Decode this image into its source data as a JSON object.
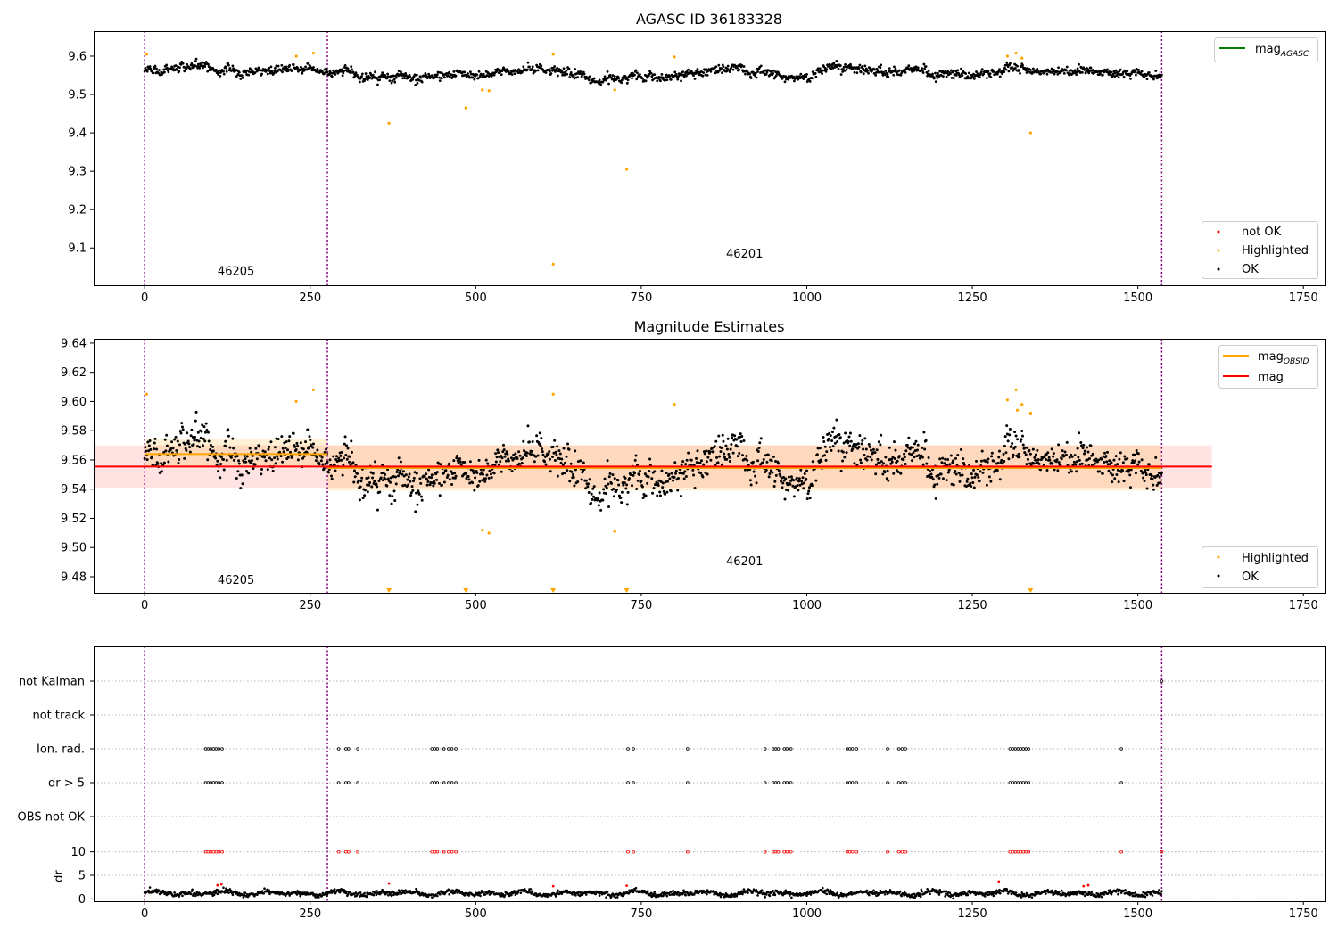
{
  "chart_data": [
    {
      "type": "scatter",
      "title": "AGASC ID 36183328",
      "xlabel": "",
      "ylabel": "",
      "xlim": [
        -77,
        1782
      ],
      "ylim": [
        9.003,
        9.665
      ],
      "xticks": [
        0,
        250,
        500,
        750,
        1000,
        1250,
        1500,
        1750
      ],
      "yticks": [
        9.1,
        9.2,
        9.3,
        9.4,
        9.5,
        9.6
      ],
      "vlines": [
        0,
        276,
        1536
      ],
      "obsid_labels": [
        {
          "text": "46205",
          "x": 138,
          "y": 9.03
        },
        {
          "text": "46201",
          "x": 906,
          "y": 9.075
        }
      ],
      "legend_upper": {
        "entries": [
          {
            "label": "mag",
            "sub": "AGASC",
            "color": "#008000"
          }
        ],
        "placement": "upper right"
      },
      "legend_lower": {
        "entries": [
          {
            "label": "not OK",
            "color": "#ff0000"
          },
          {
            "label": "Highlighted",
            "color": "#ffa500"
          },
          {
            "label": "OK",
            "color": "#000000"
          }
        ],
        "placement": "lower right"
      },
      "series": [
        {
          "name": "OK",
          "color": "#000000",
          "x_start": 0,
          "x_end": 1536,
          "mean": 9.556,
          "spread": 0.012
        },
        {
          "name": "Highlighted",
          "color": "#ffa500",
          "points": [
            [
              3,
              9.605
            ],
            [
              229,
              9.6
            ],
            [
              255,
              9.608
            ],
            [
              369,
              9.425
            ],
            [
              485,
              9.465
            ],
            [
              510,
              9.512
            ],
            [
              520,
              9.51
            ],
            [
              617,
              9.605
            ],
            [
              617,
              9.058
            ],
            [
              710,
              9.512
            ],
            [
              728,
              9.305
            ],
            [
              800,
              9.598
            ],
            [
              1303,
              9.6
            ],
            [
              1316,
              9.608
            ],
            [
              1325,
              9.595
            ],
            [
              1338,
              9.4
            ]
          ]
        }
      ]
    },
    {
      "type": "scatter",
      "title": "Magnitude Estimates",
      "xlabel": "",
      "ylabel": "",
      "xlim": [
        -77,
        1782
      ],
      "ylim": [
        9.469,
        9.643
      ],
      "xticks": [
        0,
        250,
        500,
        750,
        1000,
        1250,
        1500,
        1750
      ],
      "yticks": [
        9.48,
        9.5,
        9.52,
        9.54,
        9.56,
        9.58,
        9.6,
        9.62,
        9.64
      ],
      "vlines": [
        0,
        276,
        1536
      ],
      "obsid_labels": [
        {
          "text": "46205",
          "x": 138,
          "y": 9.475
        },
        {
          "text": "46201",
          "x": 906,
          "y": 9.488
        }
      ],
      "mag_line": {
        "value": 9.5555,
        "band": [
          9.541,
          9.57
        ],
        "x_range": [
          -77,
          1612
        ],
        "color": "#ff0000"
      },
      "obsid_mags": [
        {
          "x_range": [
            0,
            276
          ],
          "value": 9.564,
          "band": [
            9.556,
            9.5745
          ]
        },
        {
          "x_range": [
            276,
            1536
          ],
          "value": 9.5545,
          "band": [
            9.539,
            9.57
          ]
        }
      ],
      "legend_upper": {
        "entries": [
          {
            "label": "mag",
            "sub": "OBSID",
            "color": "#ffa500"
          },
          {
            "label": "mag",
            "sub": "",
            "color": "#ff0000"
          }
        ],
        "placement": "upper right"
      },
      "legend_lower": {
        "entries": [
          {
            "label": "Highlighted",
            "color": "#ffa500"
          },
          {
            "label": "OK",
            "color": "#000000"
          }
        ],
        "placement": "lower right"
      },
      "offscale_markers_x": [
        369,
        485,
        617,
        728,
        1338
      ],
      "series": [
        {
          "name": "OK",
          "color": "#000000",
          "x_start": 0,
          "x_end": 1536,
          "mean": 9.556,
          "spread": 0.012
        },
        {
          "name": "Highlighted",
          "color": "#ffa500",
          "points": [
            [
              3,
              9.605
            ],
            [
              229,
              9.6
            ],
            [
              255,
              9.608
            ],
            [
              510,
              9.512
            ],
            [
              520,
              9.51
            ],
            [
              617,
              9.605
            ],
            [
              710,
              9.511
            ],
            [
              800,
              9.598
            ],
            [
              1303,
              9.601
            ],
            [
              1316,
              9.608
            ],
            [
              1318,
              9.594
            ],
            [
              1325,
              9.598
            ],
            [
              1338,
              9.592
            ]
          ]
        }
      ]
    },
    {
      "type": "scatter",
      "title": "",
      "xlim": [
        -77,
        1782
      ],
      "xticks": [
        0,
        250,
        500,
        750,
        1000,
        1250,
        1500,
        1750
      ],
      "vlines": [
        0,
        276,
        1536
      ],
      "flag_categories": [
        "not Kalman",
        "not track",
        "Ion. rad.",
        "dr > 5",
        "OBS not OK"
      ],
      "flag_points": {
        "Ion. rad.": [
          92,
          96,
          100,
          104,
          108,
          112,
          117,
          293,
          304,
          308,
          322,
          434,
          438,
          442,
          452,
          459,
          464,
          470,
          730,
          738,
          820,
          937,
          949,
          953,
          957,
          966,
          970,
          976,
          1061,
          1065,
          1069,
          1075,
          1122,
          1139,
          1144,
          1149,
          1307,
          1311,
          1315,
          1319,
          1323,
          1327,
          1331,
          1335,
          1475
        ],
        "dr > 5": [
          92,
          96,
          100,
          104,
          108,
          112,
          117,
          293,
          304,
          308,
          322,
          434,
          438,
          442,
          452,
          459,
          464,
          470,
          730,
          738,
          820,
          937,
          949,
          953,
          957,
          966,
          970,
          976,
          1061,
          1065,
          1069,
          1075,
          1122,
          1139,
          1144,
          1149,
          1307,
          1311,
          1315,
          1319,
          1323,
          1327,
          1331,
          1335,
          1475
        ],
        "not Kalman": [
          1536
        ]
      },
      "dr_panel": {
        "ylabel": "dr",
        "yticks": [
          0,
          5,
          10
        ],
        "ylim": [
          -0.5,
          10.5
        ],
        "clip_value": 10,
        "clipped_x": [
          92,
          96,
          100,
          104,
          108,
          112,
          117,
          293,
          304,
          308,
          322,
          434,
          438,
          442,
          452,
          459,
          464,
          470,
          730,
          738,
          820,
          937,
          949,
          953,
          957,
          966,
          970,
          976,
          1061,
          1065,
          1069,
          1075,
          1122,
          1139,
          1144,
          1149,
          1307,
          1311,
          1315,
          1319,
          1323,
          1327,
          1331,
          1335,
          1475,
          1536
        ],
        "red_points": [
          [
            110,
            2.9
          ],
          [
            116,
            3.1
          ],
          [
            369,
            3.3
          ],
          [
            617,
            2.7
          ],
          [
            728,
            2.8
          ],
          [
            1290,
            3.7
          ],
          [
            1418,
            2.7
          ],
          [
            1425,
            2.9
          ]
        ],
        "base_mean": 1.2
      }
    }
  ]
}
